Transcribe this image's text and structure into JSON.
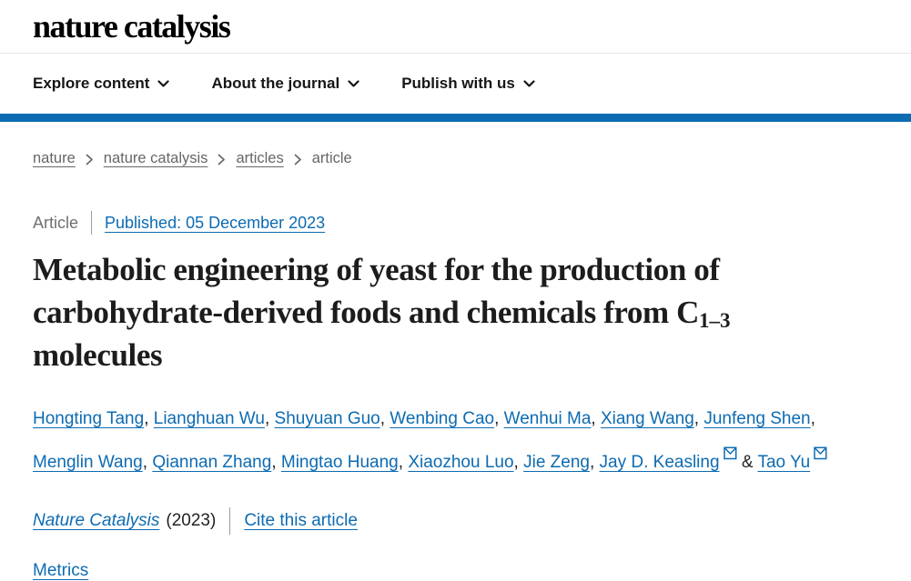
{
  "header": {
    "logo": "nature catalysis"
  },
  "nav": {
    "items": [
      {
        "label": "Explore content"
      },
      {
        "label": "About the journal"
      },
      {
        "label": "Publish with us"
      }
    ]
  },
  "breadcrumb": {
    "items": [
      {
        "label": "nature"
      },
      {
        "label": "nature catalysis"
      },
      {
        "label": "articles"
      },
      {
        "label": "article"
      }
    ]
  },
  "article": {
    "type_label": "Article",
    "published_link": "Published: 05 December 2023",
    "title": {
      "line1": "Metabolic engineering of yeast for the production of",
      "line2": "carbohydrate-derived foods and chemicals from C",
      "subscript": "1–3",
      "line3": "molecules"
    },
    "authors": [
      {
        "name": "Hongting Tang"
      },
      {
        "name": "Lianghuan Wu"
      },
      {
        "name": "Shuyuan Guo"
      },
      {
        "name": "Wenbing Cao"
      },
      {
        "name": "Wenhui Ma"
      },
      {
        "name": "Xiang Wang"
      },
      {
        "name": "Junfeng Shen"
      },
      {
        "name": "Menglin Wang"
      },
      {
        "name": "Qiannan Zhang"
      },
      {
        "name": "Mingtao Huang"
      },
      {
        "name": "Xiaozhou Luo"
      },
      {
        "name": "Jie Zeng"
      },
      {
        "name": "Jay D. Keasling",
        "email_icon": true
      },
      {
        "name": "Tao Yu",
        "email_icon": true
      }
    ],
    "author_joiner": "&",
    "journal_name": "Nature Catalysis",
    "year": "(2023)",
    "cite_link": "Cite this article",
    "metrics_link": "Metrics"
  },
  "colors": {
    "link_blue": "#0d6bb2",
    "bar_blue": "#0d6bb2",
    "breadcrumb_gray": "#666666"
  }
}
